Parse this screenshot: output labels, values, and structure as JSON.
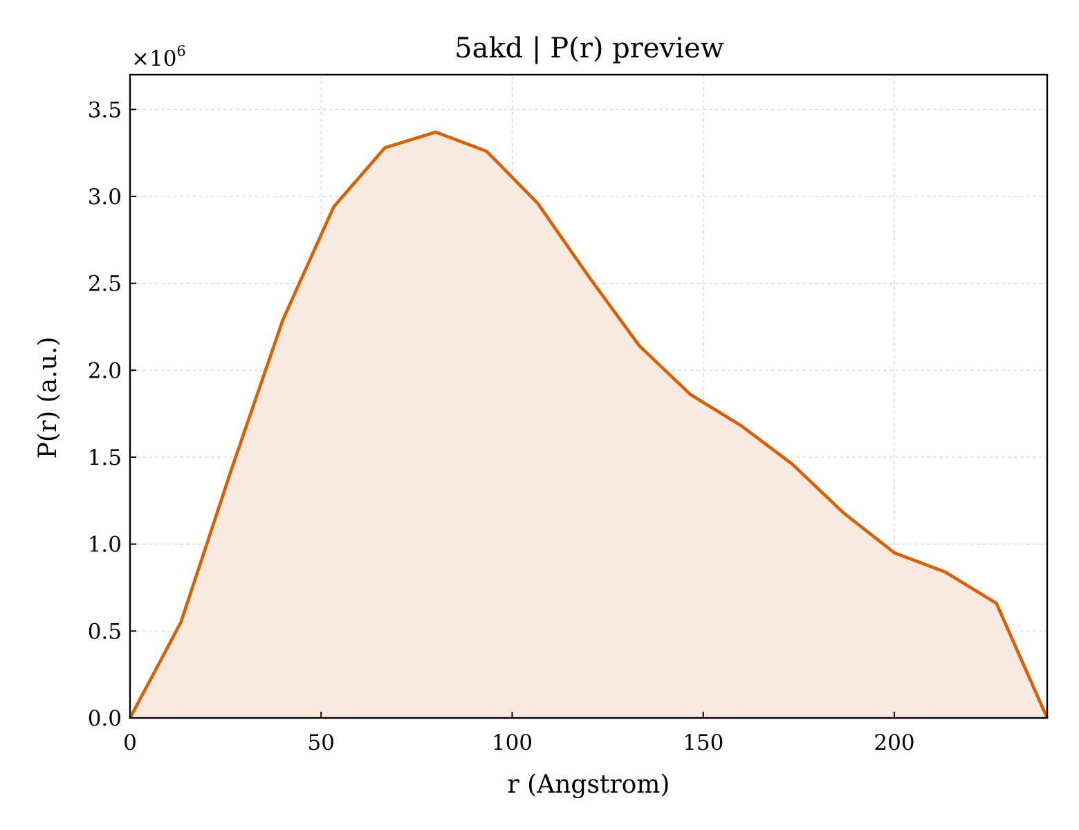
{
  "chart_data": {
    "type": "area",
    "title": "5akd | P(r) preview",
    "xlabel": "r (Angstrom)",
    "ylabel": "P(r) (a.u.)",
    "y_multiplier": "×10",
    "y_exponent": "6",
    "xlim": [
      0,
      240
    ],
    "ylim": [
      0,
      3.7
    ],
    "xticks": [
      0,
      50,
      100,
      150,
      200
    ],
    "xtick_labels": [
      "0",
      "50",
      "100",
      "150",
      "200"
    ],
    "yticks": [
      0,
      0.5,
      1.0,
      1.5,
      2.0,
      2.5,
      3.0,
      3.5
    ],
    "ytick_labels": [
      "0.0",
      "0.5",
      "1.0",
      "1.5",
      "2.0",
      "2.5",
      "3.0",
      "3.5"
    ],
    "grid": true,
    "series": [
      {
        "x": [
          0,
          13.3,
          26.7,
          40,
          53.3,
          66.7,
          80,
          93.3,
          106.7,
          120,
          133.3,
          146.7,
          160,
          173.3,
          186.7,
          200,
          213.3,
          226.7,
          240
        ],
        "y": [
          0.0,
          0.55,
          1.44,
          2.29,
          2.94,
          3.28,
          3.37,
          3.26,
          2.96,
          2.54,
          2.14,
          1.86,
          1.68,
          1.46,
          1.18,
          0.95,
          0.84,
          0.66,
          0.0
        ],
        "color": "#d95f02",
        "fill_color": "#f8eadf"
      }
    ]
  }
}
